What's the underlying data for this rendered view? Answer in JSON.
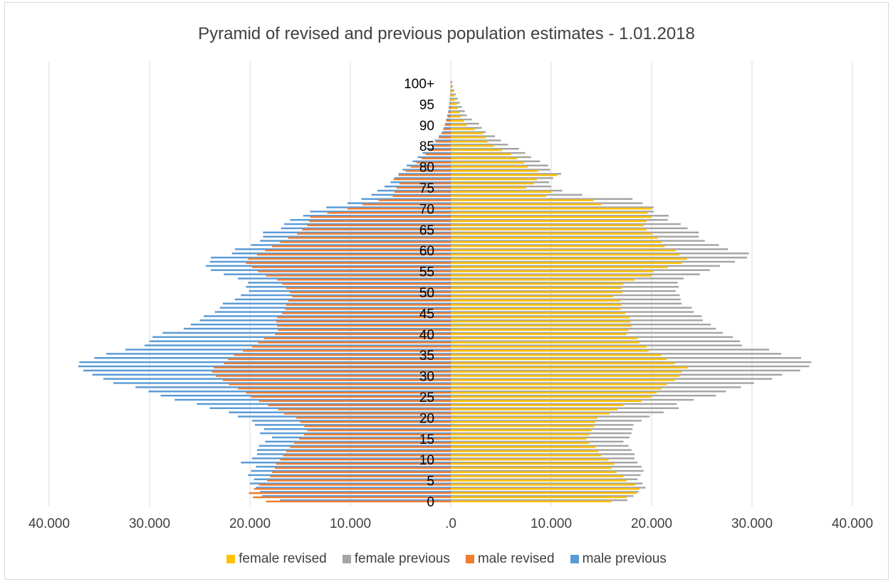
{
  "chart_data": {
    "type": "bar",
    "orientation": "horizontal",
    "title": "Pyramid of revised and previous population  estimates - 1.01.2018",
    "x_ticks": [
      "40.000",
      "30.000",
      "20.000",
      "10.000",
      ".0",
      "10.000",
      "20.000",
      "30.000",
      "40.000"
    ],
    "xlim": [
      -40000,
      40000
    ],
    "y_tick_labels": [
      "0",
      "5",
      "10",
      "15",
      "20",
      "25",
      "30",
      "35",
      "40",
      "45",
      "50",
      "55",
      "60",
      "65",
      "70",
      "75",
      "80",
      "85",
      "90",
      "95",
      "100+"
    ],
    "grid": "vertical",
    "legend_position": "bottom",
    "series": [
      {
        "name": "female revised",
        "color": "#FFC000",
        "values": [
          16000,
          17500,
          18500,
          18800,
          18400,
          17500,
          17200,
          16500,
          16000,
          16300,
          15700,
          15000,
          14700,
          14400,
          13800,
          13500,
          13800,
          14000,
          14300,
          14400,
          14600,
          15800,
          16600,
          17200,
          19000,
          20000,
          20500,
          21000,
          21500,
          22300,
          22800,
          23000,
          23600,
          22300,
          21500,
          21000,
          19700,
          19500,
          18800,
          18600,
          17500,
          17700,
          18000,
          17900,
          17800,
          17400,
          16900,
          17000,
          16900,
          16200,
          17100,
          17000,
          17200,
          18300,
          20000,
          20200,
          21600,
          23000,
          23500,
          22800,
          22400,
          21300,
          21000,
          20600,
          20100,
          19500,
          19200,
          19500,
          20000,
          19600,
          20000,
          15000,
          14200,
          9500,
          10000,
          7500,
          8300,
          8600,
          10600,
          8700,
          7700,
          7300,
          6600,
          6000,
          5100,
          4300,
          3700,
          3500,
          3200,
          2400,
          1600,
          1300,
          1000,
          900,
          700,
          600,
          450,
          350,
          250,
          150,
          120
        ],
        "annotations": []
      },
      {
        "name": "female previous",
        "color": "#A5A5A5",
        "values": [
          17600,
          18200,
          18700,
          19400,
          19100,
          18600,
          18900,
          19200,
          19000,
          18600,
          18300,
          18300,
          18000,
          17700,
          17200,
          17800,
          18000,
          18100,
          18200,
          19000,
          19800,
          21200,
          22700,
          22500,
          24200,
          26400,
          27400,
          28900,
          30200,
          32000,
          33000,
          34800,
          35700,
          35900,
          34900,
          32900,
          31700,
          29000,
          28800,
          28100,
          27100,
          26400,
          25900,
          25100,
          25000,
          24200,
          24000,
          23000,
          22900,
          22800,
          22400,
          22700,
          22600,
          23200,
          24800,
          25800,
          26800,
          28300,
          29500,
          29700,
          27600,
          26700,
          25300,
          24700,
          24700,
          23600,
          22900,
          21600,
          21700,
          20200,
          20200,
          19100,
          18100,
          13100,
          11100,
          10000,
          9800,
          10200,
          11000,
          9900,
          9700,
          8900,
          8000,
          7400,
          6800,
          5700,
          5000,
          4400,
          3500,
          3100,
          2800,
          2100,
          1600,
          1400,
          1100,
          900,
          700,
          500,
          350,
          200,
          150
        ]
      },
      {
        "name": "male revised",
        "color": "#ED7D31",
        "values": [
          -18400,
          -19700,
          -20100,
          -19600,
          -19100,
          -18300,
          -18000,
          -17800,
          -17500,
          -17400,
          -17000,
          -16700,
          -16400,
          -16000,
          -15600,
          -15100,
          -14600,
          -14300,
          -14600,
          -15000,
          -15400,
          -16600,
          -17200,
          -18200,
          -19100,
          -19900,
          -20400,
          -21200,
          -22100,
          -22700,
          -23400,
          -23800,
          -23600,
          -22600,
          -22200,
          -21600,
          -20700,
          -19800,
          -19200,
          -18600,
          -17500,
          -17200,
          -17300,
          -17400,
          -17300,
          -16800,
          -16500,
          -16400,
          -16200,
          -15800,
          -16000,
          -16400,
          -16800,
          -17300,
          -18400,
          -19200,
          -19800,
          -20400,
          -20200,
          -19300,
          -18500,
          -17800,
          -17000,
          -16200,
          -15300,
          -14800,
          -14300,
          -14100,
          -14000,
          -12300,
          -10300,
          -8800,
          -7200,
          -5800,
          -5600,
          -5400,
          -5100,
          -5700,
          -5200,
          -4500,
          -4000,
          -3400,
          -2900,
          -2500,
          -2200,
          -1800,
          -1500,
          -1200,
          -950,
          -750,
          -600,
          -450,
          -320,
          -250,
          -180,
          -120,
          -80,
          -60,
          -40,
          -25,
          -20
        ]
      },
      {
        "name": "male previous",
        "color": "#5B9BD5",
        "values": [
          -17000,
          -18800,
          -19000,
          -19400,
          -20000,
          -19600,
          -20200,
          -19900,
          -19400,
          -20900,
          -19800,
          -19300,
          -19300,
          -19100,
          -18500,
          -17800,
          -19000,
          -18600,
          -19500,
          -19800,
          -21200,
          -22100,
          -24000,
          -25300,
          -27500,
          -28900,
          -30100,
          -31400,
          -33600,
          -34600,
          -35700,
          -36600,
          -37100,
          -37000,
          -35500,
          -34300,
          -32400,
          -30500,
          -30000,
          -29700,
          -28700,
          -26600,
          -25900,
          -25000,
          -24600,
          -23500,
          -23000,
          -22700,
          -21500,
          -20900,
          -20100,
          -20400,
          -20200,
          -21200,
          -22600,
          -23900,
          -24400,
          -24000,
          -23900,
          -21800,
          -21500,
          -19900,
          -19000,
          -18700,
          -18700,
          -16900,
          -16600,
          -16000,
          -14700,
          -14000,
          -12400,
          -10300,
          -8900,
          -7900,
          -7300,
          -6600,
          -6000,
          -5600,
          -5200,
          -4800,
          -4400,
          -3800,
          -3300,
          -2800,
          -2400,
          -1900,
          -1600,
          -1200,
          -850,
          -700,
          -550,
          -450,
          -350,
          -250,
          -200,
          -150,
          -100,
          -70,
          -50,
          -30,
          -20
        ]
      }
    ]
  }
}
